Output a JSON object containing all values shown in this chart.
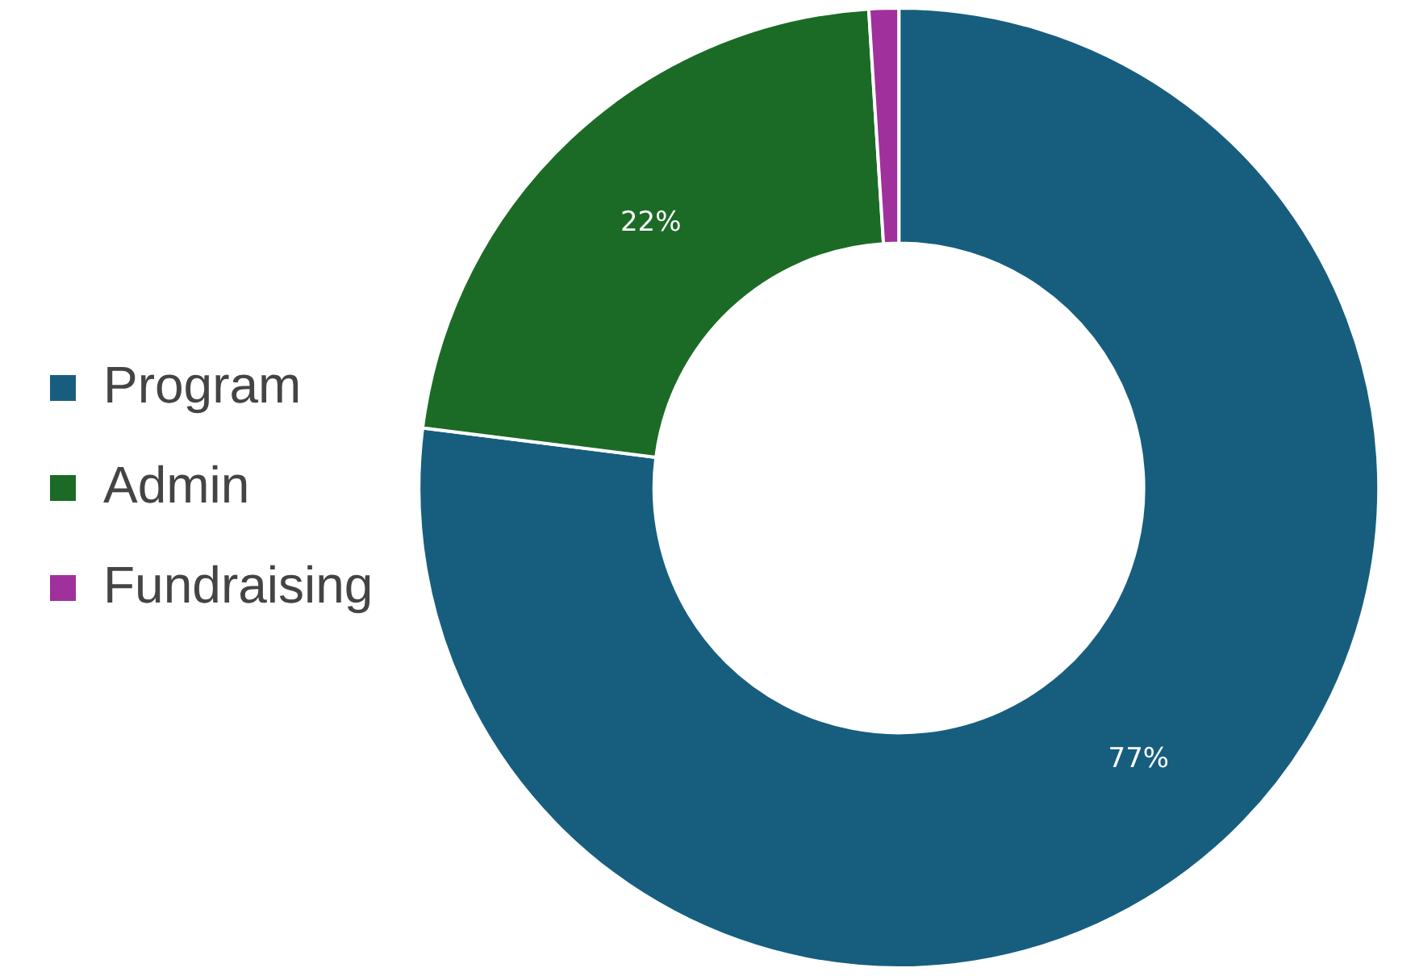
{
  "chart_data": {
    "type": "donut",
    "categories": [
      "Program",
      "Admin",
      "Fundraising"
    ],
    "values": [
      77,
      22,
      1
    ],
    "colors": [
      "#175e7e",
      "#1b6b26",
      "#a0309b"
    ],
    "value_labels": [
      "77%",
      "22%",
      null
    ],
    "legend": "left"
  }
}
